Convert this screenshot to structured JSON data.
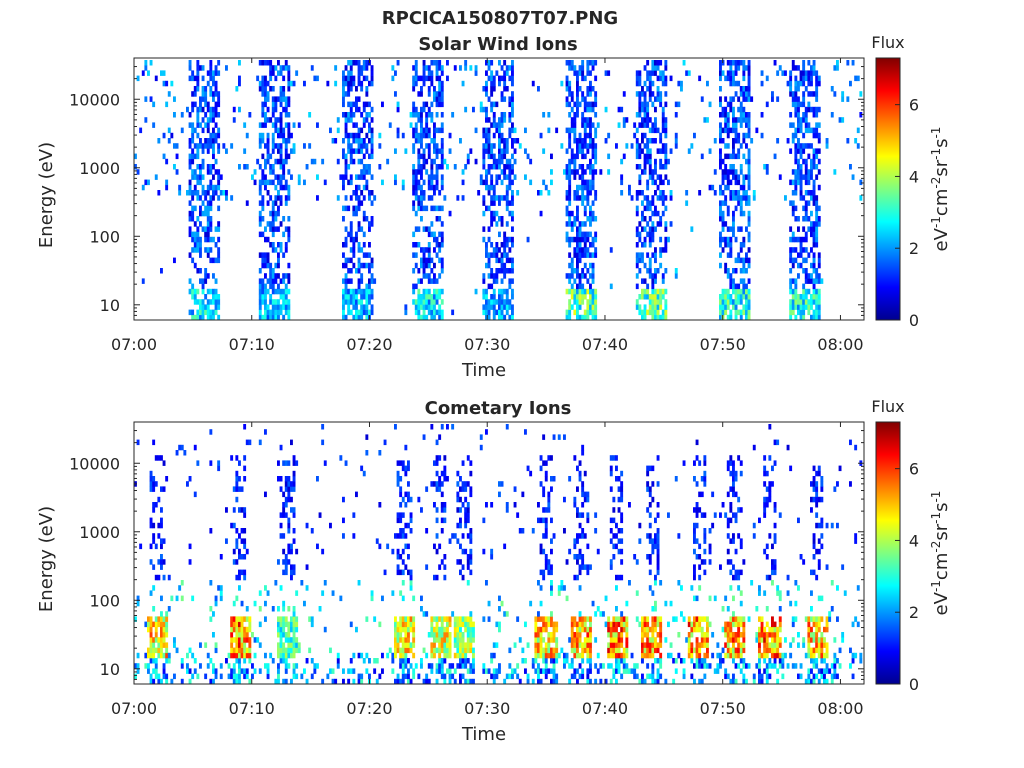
{
  "figure": {
    "title": "RPCICA150807T07.PNG"
  },
  "chart_data": [
    {
      "type": "heatmap",
      "title": "Solar Wind Ions",
      "xlabel": "Time",
      "ylabel": "Energy (eV)",
      "x_range": [
        "07:00",
        "08:02"
      ],
      "x_ticks": [
        "07:00",
        "07:10",
        "07:20",
        "07:30",
        "07:40",
        "07:50",
        "08:00"
      ],
      "y_scale": "log",
      "y_range": [
        6,
        40000
      ],
      "y_ticks": [
        "10",
        "100",
        "1000",
        "10000"
      ],
      "colorbar": {
        "title": "Flux",
        "label": "eV-1cm-2sr-1s-1",
        "range": [
          0,
          7.3
        ],
        "ticks": [
          "0",
          "2",
          "4",
          "6"
        ]
      },
      "bursts": [
        {
          "t": "07:06",
          "flux_peak": 3.5
        },
        {
          "t": "07:12",
          "flux_peak": 3.0
        },
        {
          "t": "07:19",
          "flux_peak": 3.0
        },
        {
          "t": "07:25",
          "flux_peak": 3.5
        },
        {
          "t": "07:31",
          "flux_peak": 3.0
        },
        {
          "t": "07:38",
          "flux_peak": 4.5
        },
        {
          "t": "07:44",
          "flux_peak": 4.5
        },
        {
          "t": "07:51",
          "flux_peak": 4.0
        },
        {
          "t": "07:57",
          "flux_peak": 4.0
        }
      ]
    },
    {
      "type": "heatmap",
      "title": "Cometary Ions",
      "xlabel": "Time",
      "ylabel": "Energy (eV)",
      "x_range": [
        "07:00",
        "08:02"
      ],
      "x_ticks": [
        "07:00",
        "07:10",
        "07:20",
        "07:30",
        "07:40",
        "07:50",
        "08:00"
      ],
      "y_scale": "log",
      "y_range": [
        6,
        40000
      ],
      "y_ticks": [
        "10",
        "100",
        "1000",
        "10000"
      ],
      "colorbar": {
        "title": "Flux",
        "label": "eV-1cm-2sr-1s-1",
        "range": [
          0,
          7.3
        ],
        "ticks": [
          "0",
          "2",
          "4",
          "6"
        ]
      },
      "bursts": [
        {
          "t": "07:02",
          "flux_peak": 6.0
        },
        {
          "t": "07:09",
          "flux_peak": 6.8
        },
        {
          "t": "07:13",
          "flux_peak": 4.0
        },
        {
          "t": "07:23",
          "flux_peak": 5.8
        },
        {
          "t": "07:26",
          "flux_peak": 5.5
        },
        {
          "t": "07:28",
          "flux_peak": 5.0
        },
        {
          "t": "07:35",
          "flux_peak": 6.2
        },
        {
          "t": "07:38",
          "flux_peak": 6.5
        },
        {
          "t": "07:41",
          "flux_peak": 6.8
        },
        {
          "t": "07:44",
          "flux_peak": 6.5
        },
        {
          "t": "07:48",
          "flux_peak": 6.8
        },
        {
          "t": "07:51",
          "flux_peak": 6.5
        },
        {
          "t": "07:54",
          "flux_peak": 6.8
        },
        {
          "t": "07:58",
          "flux_peak": 6.2
        }
      ]
    }
  ]
}
